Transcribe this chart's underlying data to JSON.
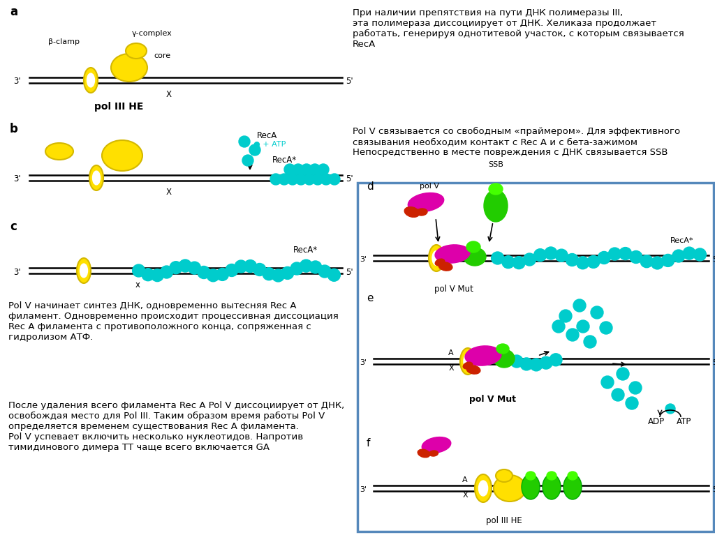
{
  "bg_color": "#ffffff",
  "yellow": "#FFE000",
  "yellow_outline": "#D4B800",
  "cyan": "#00CCCC",
  "magenta": "#DD00AA",
  "green": "#22CC00",
  "red": "#CC2200",
  "box_color": "#5588BB",
  "text1": "При наличии препятствия на пути ДНК полимеразы III,\nэта полимераза диссоциирует от ДНК. Хеликаза продолжает\nработать, генерируя однотитевой участок, с которым связывается\nRecA",
  "text2": "Pol V связывается со свободным «праймером». Для эффективного\nсвязывания необходим контакт с Rec A и с бета-зажимом\nНепосредственно в месте повреждения с ДНК связывается SSB",
  "text3": "Pol V начинает синтез ДНК, одновременно вытесняя Rec A\nфиламент. Одновременно происходит процессивная диссоциация\nRec A филамента с противоположного конца, сопряженная с\nгидролизом АТФ.",
  "text4": "После удаления всего филамента Rec A Pol V диссоциирует от ДНК,\nосвобождая место для Pol III. Таким образом время работы Pol V\nопределяется временем существования Rec A филамента.\nPol V успевает включить несколько нуклеотидов. Напротив\nтимидинового димера ТТ чаще всего включается GA"
}
